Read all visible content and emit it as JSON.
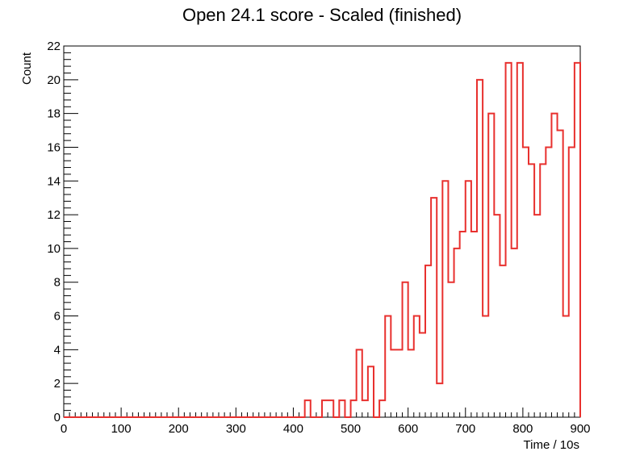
{
  "chart_data": {
    "type": "histogram",
    "title": "Open 24.1 score - Scaled (finished)",
    "xlabel": "Time / 10s",
    "ylabel": "Count",
    "xlim": [
      0,
      900
    ],
    "ylim": [
      0,
      22
    ],
    "bin_width": 10,
    "x_ticks": [
      0,
      100,
      200,
      300,
      400,
      500,
      600,
      700,
      800,
      900
    ],
    "y_ticks": [
      0,
      2,
      4,
      6,
      8,
      10,
      12,
      14,
      16,
      18,
      20,
      22
    ],
    "line_color": "#e8302e",
    "bins": [
      {
        "x": 420,
        "count": 1
      },
      {
        "x": 430,
        "count": 0
      },
      {
        "x": 440,
        "count": 0
      },
      {
        "x": 450,
        "count": 1
      },
      {
        "x": 460,
        "count": 1
      },
      {
        "x": 470,
        "count": 0
      },
      {
        "x": 480,
        "count": 1
      },
      {
        "x": 490,
        "count": 0
      },
      {
        "x": 500,
        "count": 1
      },
      {
        "x": 510,
        "count": 4
      },
      {
        "x": 520,
        "count": 1
      },
      {
        "x": 530,
        "count": 3
      },
      {
        "x": 540,
        "count": 0
      },
      {
        "x": 550,
        "count": 1
      },
      {
        "x": 560,
        "count": 6
      },
      {
        "x": 570,
        "count": 4
      },
      {
        "x": 580,
        "count": 4
      },
      {
        "x": 590,
        "count": 8
      },
      {
        "x": 600,
        "count": 4
      },
      {
        "x": 610,
        "count": 6
      },
      {
        "x": 620,
        "count": 5
      },
      {
        "x": 630,
        "count": 9
      },
      {
        "x": 640,
        "count": 13
      },
      {
        "x": 650,
        "count": 2
      },
      {
        "x": 660,
        "count": 14
      },
      {
        "x": 670,
        "count": 8
      },
      {
        "x": 680,
        "count": 10
      },
      {
        "x": 690,
        "count": 11
      },
      {
        "x": 700,
        "count": 14
      },
      {
        "x": 710,
        "count": 11
      },
      {
        "x": 720,
        "count": 20
      },
      {
        "x": 730,
        "count": 6
      },
      {
        "x": 740,
        "count": 18
      },
      {
        "x": 750,
        "count": 12
      },
      {
        "x": 760,
        "count": 9
      },
      {
        "x": 770,
        "count": 21
      },
      {
        "x": 780,
        "count": 10
      },
      {
        "x": 790,
        "count": 21
      },
      {
        "x": 800,
        "count": 16
      },
      {
        "x": 810,
        "count": 15
      },
      {
        "x": 820,
        "count": 12
      },
      {
        "x": 830,
        "count": 15
      },
      {
        "x": 840,
        "count": 16
      },
      {
        "x": 850,
        "count": 18
      },
      {
        "x": 860,
        "count": 17
      },
      {
        "x": 870,
        "count": 6
      },
      {
        "x": 880,
        "count": 16
      },
      {
        "x": 890,
        "count": 21
      }
    ]
  }
}
